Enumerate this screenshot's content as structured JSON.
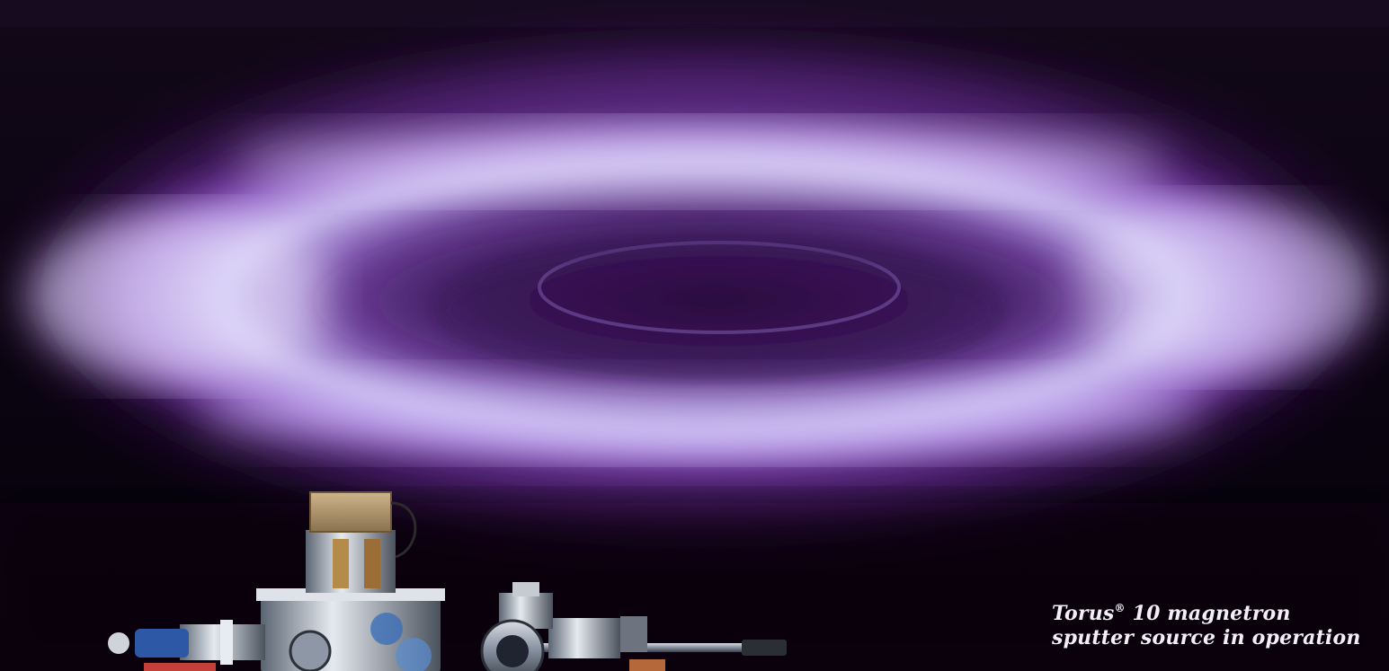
{
  "photo": {
    "subject": "magnetron sputter source plasma glow",
    "plasma_color": "#b77be8",
    "core_color": "#e9e4ff",
    "background_color": "#0a0410"
  },
  "caption": {
    "line1_name": "Torus",
    "line1_mark": "®",
    "line1_rest": " 10 magnetron",
    "line2": "sputter source in operation"
  }
}
